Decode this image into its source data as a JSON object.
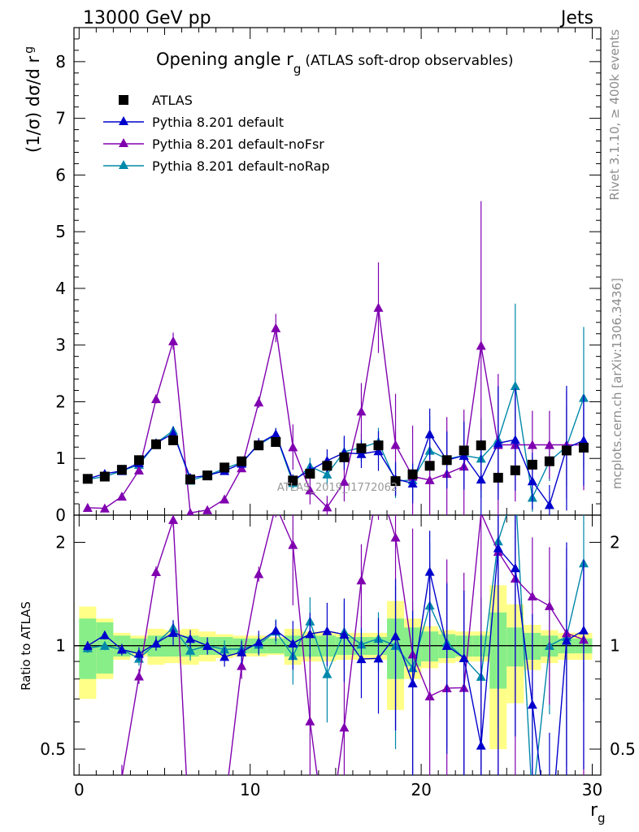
{
  "header": {
    "left": "13000 GeV pp",
    "right": "Jets"
  },
  "top_panel": {
    "title_main": "Opening angle r",
    "title_sub": "g",
    "title_tail": "(ATLAS soft-drop observables)",
    "ylabel": "(1/σ) dσ/d r",
    "ylabel_sub": "g",
    "yticks": [
      "0",
      "1",
      "2",
      "3",
      "4",
      "5",
      "6",
      "7",
      "8"
    ],
    "watermark": "ATLAS_2019_I1772062"
  },
  "bottom_panel": {
    "ylabel": "Ratio to ATLAS",
    "yticks": [
      "0.5",
      "1",
      "2"
    ]
  },
  "x_axis": {
    "label": "r",
    "label_sub": "g",
    "ticks": [
      "0",
      "10",
      "20",
      "30"
    ]
  },
  "side_text": {
    "rivet": "Rivet 3.1.10, ≥ 400k events",
    "mcplots": "mcplots.cern.ch [arXiv:1306.3436]"
  },
  "legend": [
    {
      "label": "ATLAS",
      "marker": "square",
      "color": "#000000"
    },
    {
      "label": "Pythia 8.201 default",
      "marker": "triangle",
      "color": "#0000cc"
    },
    {
      "label": "Pythia 8.201 default-noFsr",
      "marker": "triangle",
      "color": "#8000b0"
    },
    {
      "label": "Pythia 8.201 default-noRap",
      "marker": "triangle",
      "color": "#0088aa"
    }
  ],
  "chart_data": {
    "type": "scatter",
    "title": "Opening angle r_g (ATLAS soft-drop observables)",
    "xlabel": "r_g",
    "ylabel": "(1/σ) dσ/d r_g",
    "xlim": [
      -0.3,
      30.5
    ],
    "ylim": [
      0,
      8.6
    ],
    "ratio_ylabel": "Ratio to ATLAS",
    "ratio_ylim": [
      0.42,
      2.4
    ],
    "ratio_scale": "log",
    "x": [
      0.5,
      1.5,
      2.5,
      3.5,
      4.5,
      5.5,
      6.5,
      7.5,
      8.5,
      9.5,
      10.5,
      11.5,
      12.5,
      13.5,
      14.5,
      15.5,
      16.5,
      17.5,
      18.5,
      19.5,
      20.5,
      21.5,
      22.5,
      23.5,
      24.5,
      25.5,
      26.5,
      27.5,
      28.5,
      29.5
    ],
    "series": [
      {
        "name": "ATLAS",
        "values": [
          0.64,
          0.68,
          0.8,
          0.97,
          1.25,
          1.32,
          0.63,
          0.7,
          0.84,
          0.95,
          1.23,
          1.29,
          0.61,
          0.73,
          0.87,
          1.02,
          1.18,
          1.23,
          0.6,
          0.72,
          0.87,
          0.97,
          1.14,
          1.23,
          0.66,
          0.79,
          0.89,
          0.95,
          1.14,
          1.19
        ]
      },
      {
        "name": "Pythia 8.201 default",
        "values": [
          0.64,
          0.73,
          0.78,
          0.92,
          1.27,
          1.44,
          0.66,
          0.7,
          0.78,
          0.91,
          1.26,
          1.43,
          0.62,
          0.79,
          0.96,
          1.1,
          1.08,
          1.13,
          0.64,
          0.56,
          1.43,
          0.97,
          1.05,
          0.63,
          1.27,
          1.33,
          0.6,
          0.18,
          1.18,
          1.32
        ]
      },
      {
        "name": "Pythia 8.201 default-noFsr",
        "values": [
          0.13,
          0.12,
          0.33,
          0.79,
          2.05,
          3.07,
          0.04,
          0.09,
          0.28,
          0.83,
          1.99,
          3.3,
          1.2,
          0.44,
          0.14,
          0.59,
          1.83,
          3.66,
          1.24,
          0.68,
          0.62,
          0.73,
          0.86,
          2.99,
          1.24,
          1.24,
          1.24,
          1.24,
          1.24,
          1.24
        ]
      },
      {
        "name": "Pythia 8.201 default-noRap",
        "values": [
          0.63,
          0.68,
          0.78,
          0.89,
          1.27,
          1.49,
          0.61,
          0.7,
          0.82,
          0.93,
          1.24,
          1.42,
          0.57,
          0.86,
          0.72,
          1.12,
          1.19,
          1.29,
          0.6,
          0.62,
          1.14,
          0.99,
          1.05,
          1.0,
          1.33,
          2.28,
          0.31,
          0.95,
          1.21,
          2.07
        ]
      }
    ],
    "ratio_band_inner": [
      0.2,
      0.17,
      0.07,
      0.05,
      0.07,
      0.07,
      0.07,
      0.06,
      0.06,
      0.05,
      0.05,
      0.05,
      0.07,
      0.07,
      0.07,
      0.06,
      0.06,
      0.06,
      0.2,
      0.13,
      0.1,
      0.08,
      0.07,
      0.07,
      0.25,
      0.13,
      0.09,
      0.07,
      0.05,
      0.05
    ],
    "ratio_band_outer": [
      0.3,
      0.2,
      0.09,
      0.07,
      0.12,
      0.11,
      0.12,
      0.1,
      0.08,
      0.07,
      0.07,
      0.06,
      0.12,
      0.1,
      0.1,
      0.09,
      0.09,
      0.09,
      0.35,
      0.2,
      0.14,
      0.11,
      0.1,
      0.1,
      0.5,
      0.32,
      0.15,
      0.11,
      0.09,
      0.09
    ],
    "errors": [
      [
        0.02,
        0.02,
        0.03,
        0.04,
        0.05,
        0.06,
        0.04,
        0.04,
        0.05,
        0.06,
        0.08,
        0.1,
        0.1,
        0.12,
        0.15,
        0.15,
        0.18,
        0.2,
        0.25,
        0.3,
        0.35,
        0.4,
        0.4,
        0.5,
        0.6,
        0.6,
        0.5,
        0.45,
        0.55,
        0.65
      ],
      [
        0.02,
        0.02,
        0.03,
        0.04,
        0.06,
        0.12,
        0.04,
        0.04,
        0.05,
        0.07,
        0.1,
        0.1,
        0.1,
        0.12,
        0.2,
        0.3,
        0.25,
        0.35,
        0.3,
        0.35,
        0.45,
        0.5,
        0.6,
        0.7,
        1.0,
        0.9,
        0.5,
        0.35,
        1.1,
        0.8
      ],
      [
        0.02,
        0.02,
        0.03,
        0.04,
        0.08,
        0.15,
        0.04,
        0.04,
        0.05,
        0.07,
        0.1,
        0.25,
        0.4,
        0.25,
        0.2,
        0.35,
        0.5,
        0.8,
        0.9,
        0.9,
        0.9,
        1.0,
        1.0,
        2.55,
        1.25,
        1.0,
        0.6,
        0.6,
        0.95,
        0.8
      ],
      [
        0.02,
        0.02,
        0.03,
        0.04,
        0.06,
        0.08,
        0.04,
        0.04,
        0.05,
        0.06,
        0.09,
        0.12,
        0.1,
        0.15,
        0.2,
        0.25,
        0.25,
        0.25,
        0.3,
        0.35,
        0.6,
        0.5,
        0.6,
        0.7,
        0.95,
        1.45,
        0.25,
        0.35,
        0.7,
        1.25
      ]
    ]
  }
}
